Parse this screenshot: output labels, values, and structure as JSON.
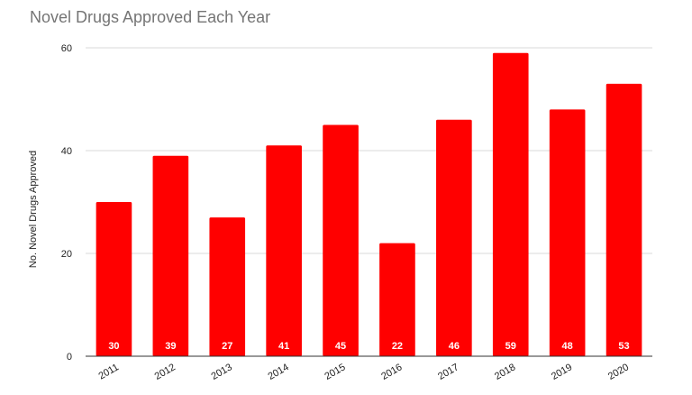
{
  "chart_data": {
    "type": "bar",
    "title": "Novel Drugs Approved Each Year",
    "xlabel": "",
    "ylabel": "No. Novel Drugs Approved",
    "categories": [
      "2011",
      "2012",
      "2013",
      "2014",
      "2015",
      "2016",
      "2017",
      "2018",
      "2019",
      "2020"
    ],
    "values": [
      30,
      39,
      27,
      41,
      45,
      22,
      46,
      59,
      48,
      53
    ],
    "ylim": [
      0,
      60
    ],
    "yticks": [
      0,
      20,
      40,
      60
    ],
    "grid": true,
    "legend": "none",
    "colors": {
      "bar": "#ff0000",
      "grid": "#d9d9d9",
      "baseline": "#333333",
      "title": "#757575"
    }
  }
}
